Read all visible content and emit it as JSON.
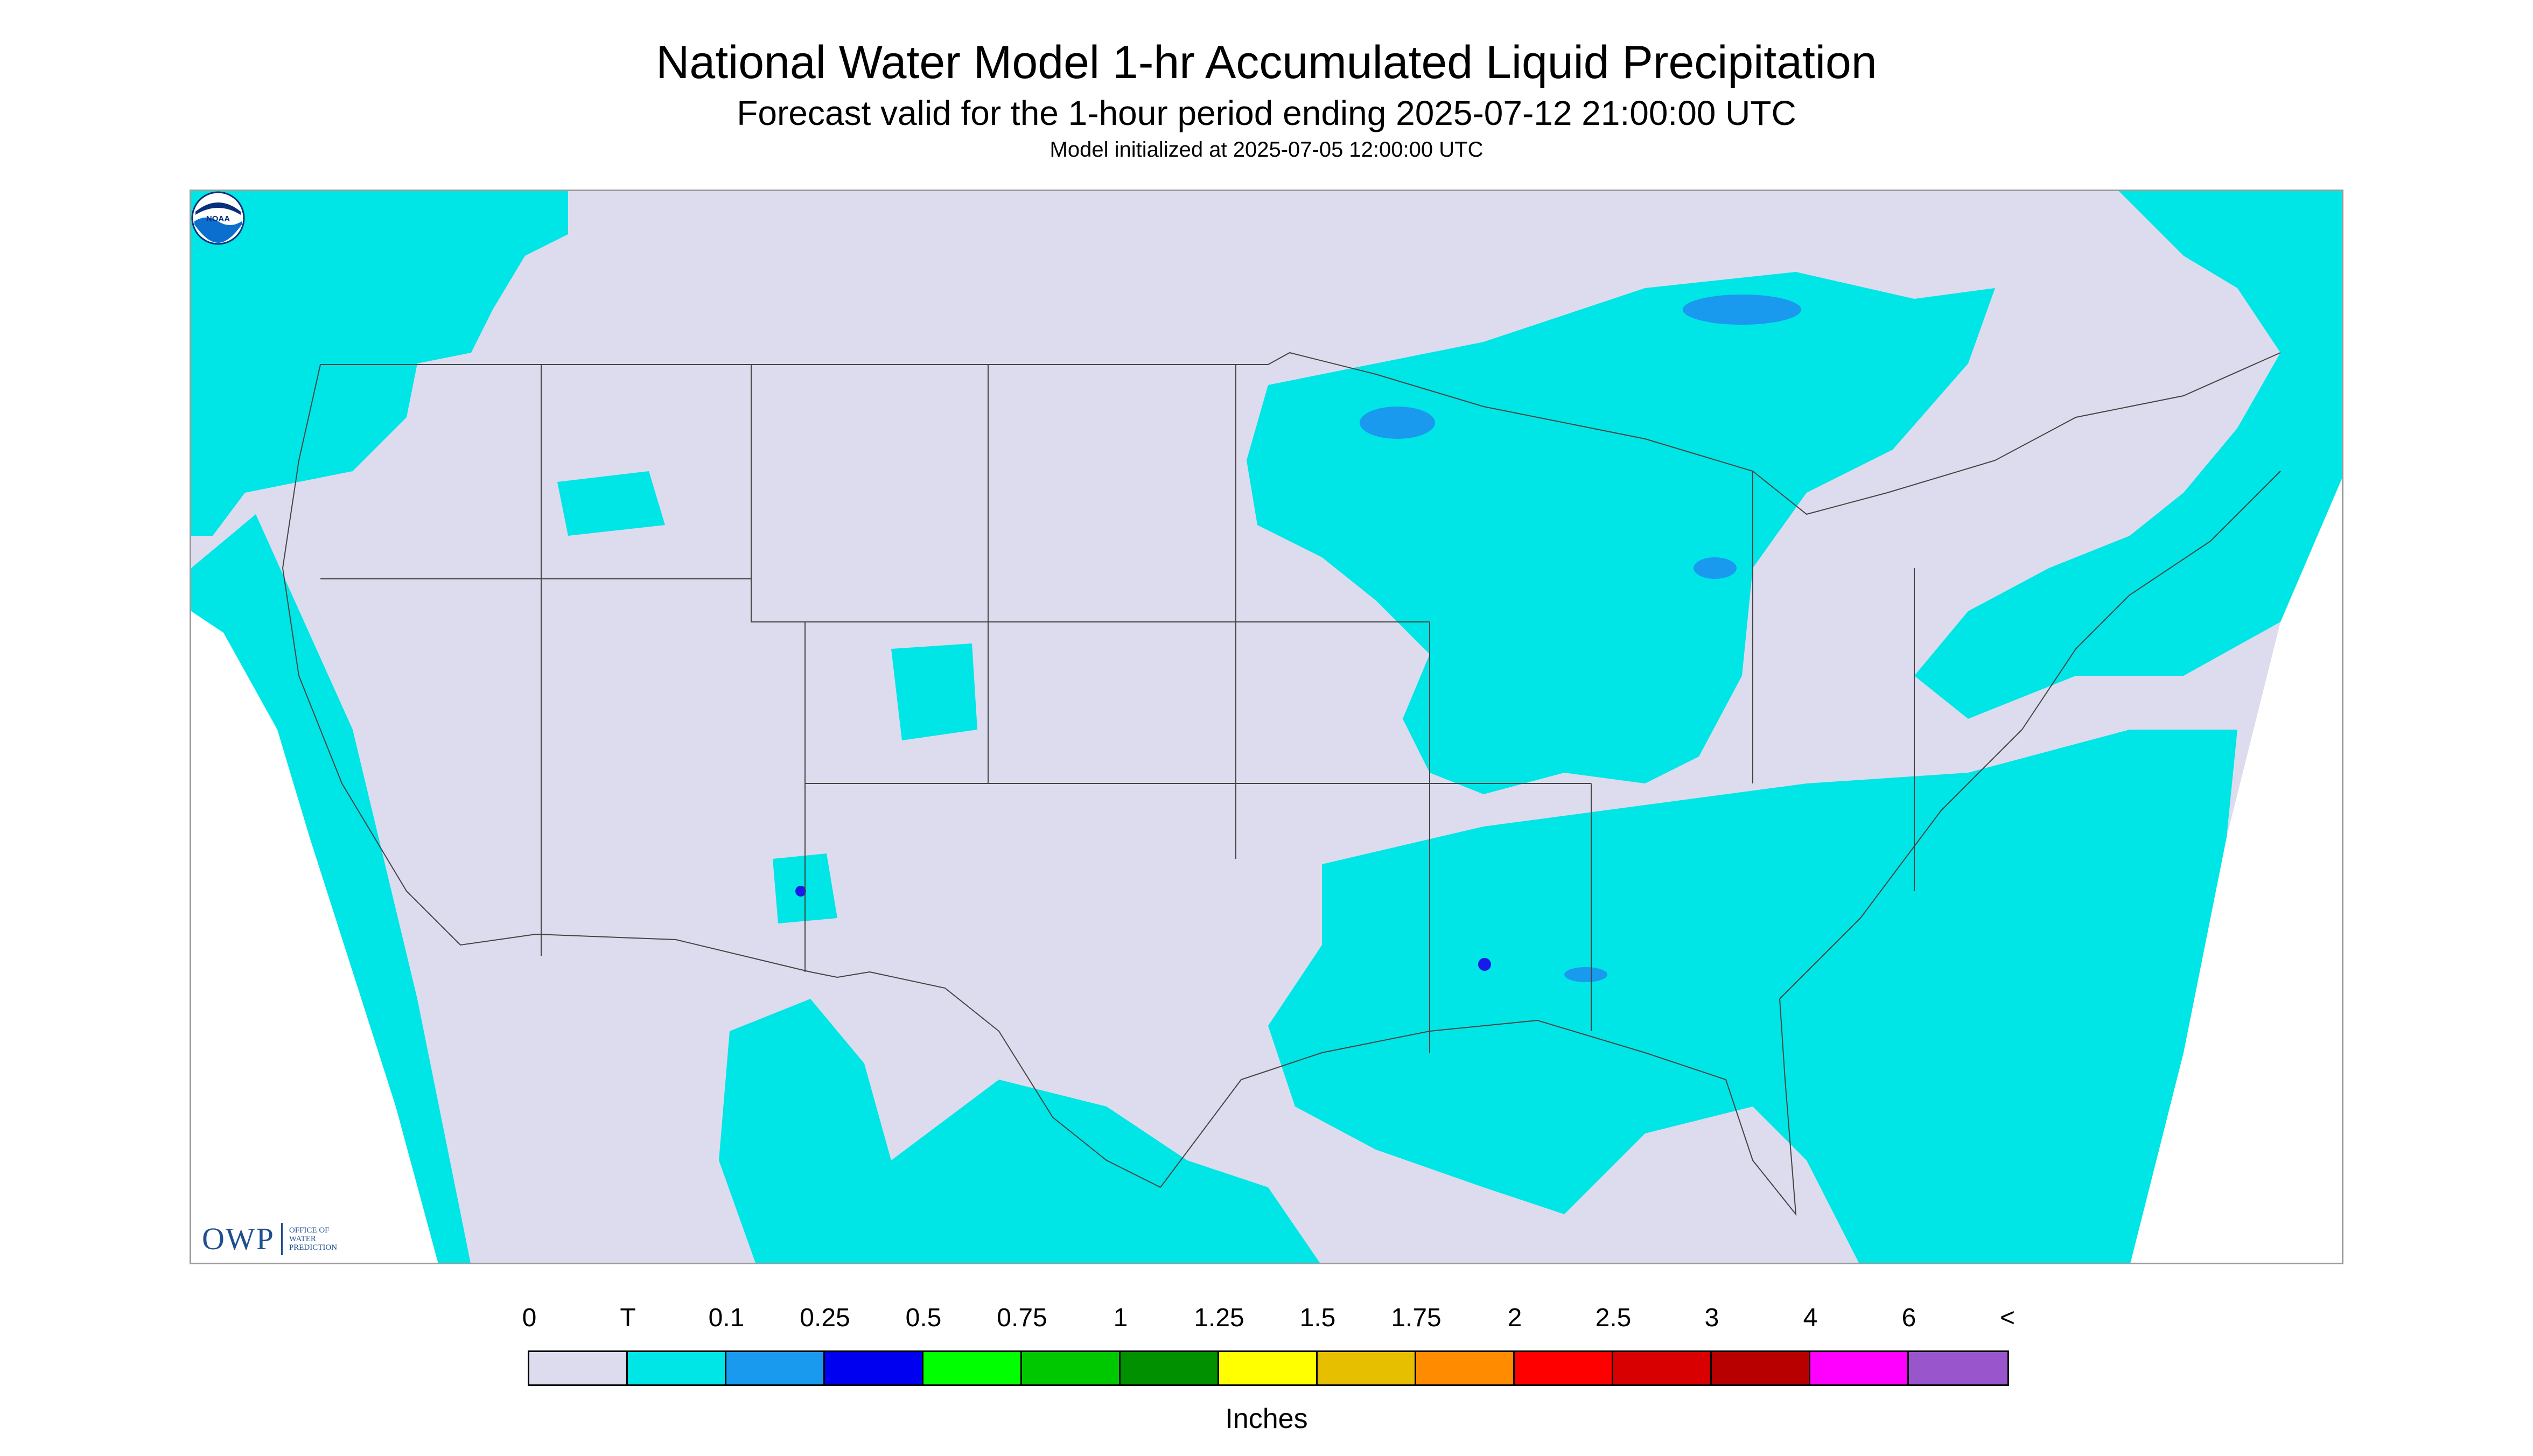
{
  "header": {
    "title": "National Water Model 1-hr Accumulated Liquid Precipitation",
    "subtitle": "Forecast valid for the 1-hour period ending 2025-07-12 21:00:00 UTC",
    "init_line": "Model initialized at 2025-07-05 12:00:00 UTC"
  },
  "map": {
    "background_color": "#dcdcee",
    "precip_colors": {
      "trace": "#00e5e5",
      "light": "#1a9aee",
      "medium": "#1a1ae8"
    },
    "border_color": "#444444",
    "outside_color": "#ffffff"
  },
  "logos": {
    "owp_mark": "OWP",
    "owp_text_line1": "OFFICE OF",
    "owp_text_line2": "WATER",
    "owp_text_line3": "PREDICTION",
    "noaa_text": "NOAA"
  },
  "legend": {
    "labels": [
      "0",
      "T",
      "0.1",
      "0.25",
      "0.5",
      "0.75",
      "1",
      "1.25",
      "1.5",
      "1.75",
      "2",
      "2.5",
      "3",
      "4",
      "6",
      "<"
    ],
    "colors": [
      "#dcdcee",
      "#00e5e5",
      "#1a9aee",
      "#0000f0",
      "#00ff00",
      "#00c800",
      "#009000",
      "#ffff00",
      "#e6c000",
      "#ff8c00",
      "#ff0000",
      "#d80000",
      "#b80000",
      "#ff00ff",
      "#9955cc"
    ],
    "units": "Inches"
  }
}
